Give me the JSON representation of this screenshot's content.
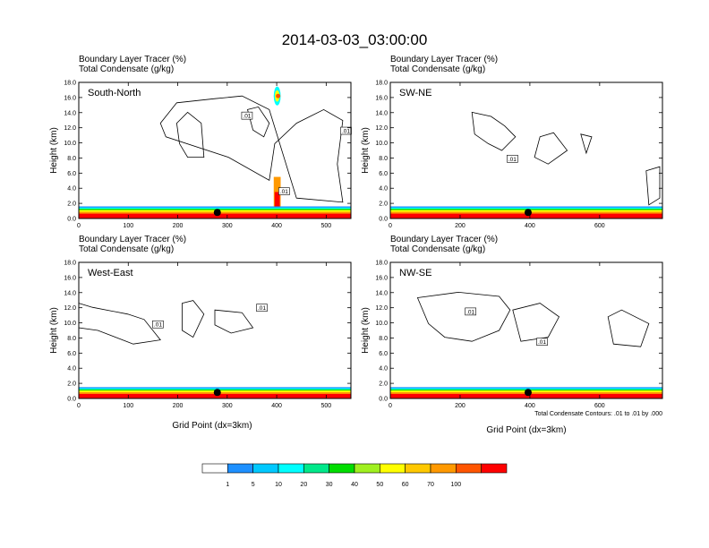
{
  "chart_data": {
    "type": "heatmap",
    "title": "2014-03-03_03:00:00",
    "field_labels": [
      "Boundary Layer Tracer   (%)",
      "Total Condensate   (g/kg)"
    ],
    "ylabel": "Height (km)",
    "xlabel": "Grid Point (dx=3km)",
    "ylim": [
      0,
      18
    ],
    "y_ticks": [
      "0.0",
      "2.0",
      "4.0",
      "6.0",
      "8.0",
      "10.0",
      "12.0",
      "14.0",
      "16.0",
      "18.0"
    ],
    "contour_note": "Total Condensate Contours: .01 to .01 by .000",
    "contour_label": ".01",
    "colorbar": {
      "levels": [
        "1",
        "5",
        "10",
        "20",
        "30",
        "40",
        "50",
        "60",
        "70",
        "100"
      ],
      "colors": [
        "#ffffff",
        "#1e90ff",
        "#00c8ff",
        "#00ffff",
        "#00e88a",
        "#00dd00",
        "#a0f020",
        "#ffff00",
        "#ffc800",
        "#ff9900",
        "#ff5500",
        "#ff0000"
      ]
    },
    "panels": [
      {
        "name": "South-North",
        "xlim": [
          0,
          550
        ],
        "x_ticks": [
          "0",
          "100",
          "200",
          "300",
          "400",
          "500"
        ],
        "marker_x": 280,
        "pbl_top_km": 1.6,
        "plume": {
          "x": [
            394,
            408
          ],
          "top_km": 17.5
        },
        "cloud_labels": [
          {
            "x": 340,
            "y": 13.6
          },
          {
            "x": 540,
            "y": 11.6
          },
          {
            "x": 415,
            "y": 3.6
          }
        ]
      },
      {
        "name": "SW-NE",
        "xlim": [
          0,
          780
        ],
        "x_ticks": [
          "0",
          "200",
          "400",
          "600"
        ],
        "marker_x": 395,
        "pbl_top_km": 1.6,
        "plume": null,
        "cloud_labels": [
          {
            "x": 350,
            "y": 7.9
          }
        ]
      },
      {
        "name": "West-East",
        "xlim": [
          0,
          550
        ],
        "x_ticks": [
          "0",
          "100",
          "200",
          "300",
          "400",
          "500"
        ],
        "marker_x": 280,
        "pbl_top_km": 1.5,
        "plume": null,
        "cloud_labels": [
          {
            "x": 160,
            "y": 9.8
          },
          {
            "x": 370,
            "y": 12.0
          }
        ]
      },
      {
        "name": "NW-SE",
        "xlim": [
          0,
          780
        ],
        "x_ticks": [
          "0",
          "200",
          "400",
          "600"
        ],
        "marker_x": 395,
        "pbl_top_km": 1.5,
        "plume": null,
        "cloud_labels": [
          {
            "x": 230,
            "y": 11.5
          },
          {
            "x": 435,
            "y": 7.5
          }
        ]
      }
    ]
  }
}
